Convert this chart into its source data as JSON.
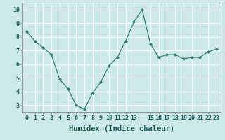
{
  "x": [
    0,
    1,
    2,
    3,
    4,
    5,
    6,
    7,
    8,
    9,
    10,
    11,
    12,
    13,
    14,
    15,
    16,
    17,
    18,
    19,
    20,
    21,
    22,
    23
  ],
  "y": [
    8.4,
    7.7,
    7.2,
    6.7,
    4.9,
    4.2,
    3.0,
    2.7,
    3.9,
    4.7,
    5.9,
    6.5,
    7.7,
    9.1,
    10.0,
    7.5,
    6.5,
    6.7,
    6.7,
    6.4,
    6.5,
    6.5,
    6.9,
    7.1
  ],
  "xlabel": "Humidex (Indice chaleur)",
  "xlim": [
    -0.5,
    23.5
  ],
  "ylim": [
    2.5,
    10.5
  ],
  "yticks": [
    3,
    4,
    5,
    6,
    7,
    8,
    9,
    10
  ],
  "xticks": [
    0,
    1,
    2,
    3,
    4,
    5,
    6,
    7,
    8,
    9,
    10,
    11,
    12,
    13,
    15,
    16,
    17,
    18,
    19,
    20,
    21,
    22,
    23
  ],
  "xticklabels": [
    "0",
    "1",
    "2",
    "3",
    "4",
    "5",
    "6",
    "7",
    "8",
    "9",
    "10",
    "11",
    "12",
    "13",
    "15",
    "16",
    "17",
    "18",
    "19",
    "20",
    "21",
    "22",
    "23"
  ],
  "line_color": "#2e7d6e",
  "marker_color": "#2e7d6e",
  "bg_color": "#cce8e8",
  "grid_color": "#ffffff",
  "tick_label_fontsize": 6.0,
  "xlabel_fontsize": 7.5
}
